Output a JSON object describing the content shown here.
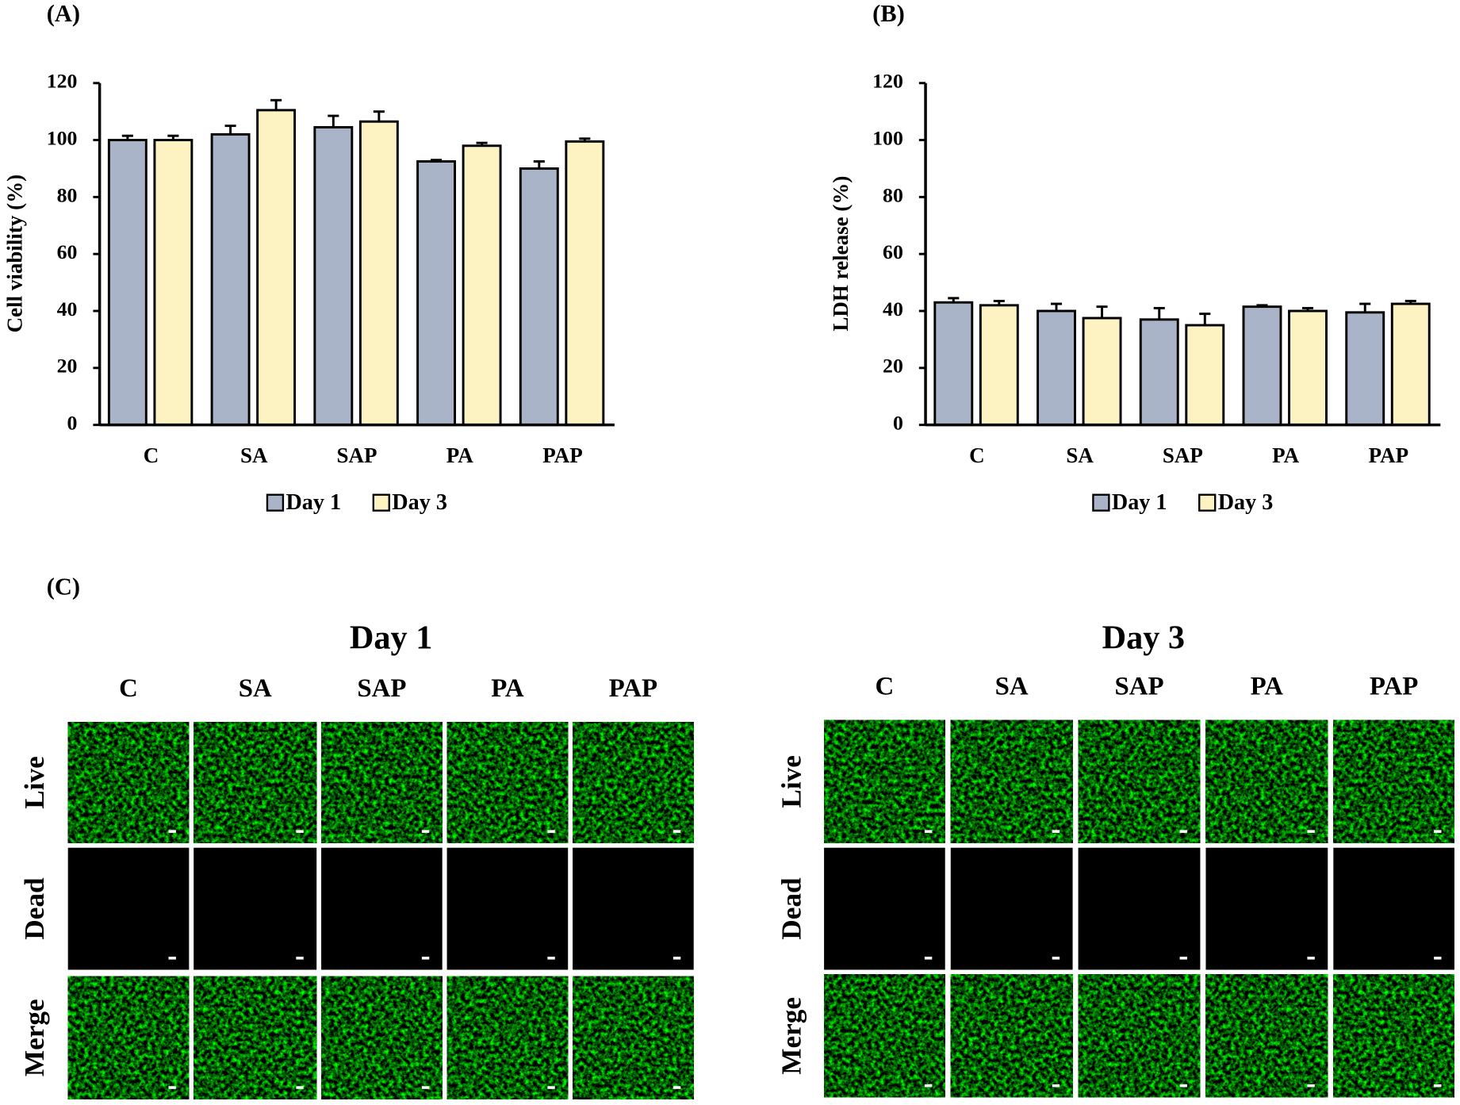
{
  "chart_data": [
    {
      "type": "bar",
      "panel_label": "(A)",
      "ylabel": "Cell viability (%)",
      "categories": [
        "C",
        "SA",
        "SAP",
        "PA",
        "PAP"
      ],
      "series": [
        {
          "name": "Day 1",
          "color": "#aab4c8",
          "values": [
            100,
            102,
            104.5,
            92.5,
            90
          ],
          "errors": [
            1.5,
            3,
            4,
            0.5,
            2.5
          ]
        },
        {
          "name": "Day 3",
          "color": "#fdf2c2",
          "values": [
            100,
            110.5,
            106.5,
            98,
            99.5
          ],
          "errors": [
            1.5,
            3.5,
            3.5,
            1,
            1
          ]
        }
      ],
      "ylim": [
        0,
        120
      ],
      "yticks": [
        0,
        20,
        40,
        60,
        80,
        100,
        120
      ],
      "legend": "bottom"
    },
    {
      "type": "bar",
      "panel_label": "(B)",
      "ylabel": "LDH release (%)",
      "categories": [
        "C",
        "SA",
        "SAP",
        "PA",
        "PAP"
      ],
      "series": [
        {
          "name": "Day 1",
          "color": "#aab4c8",
          "values": [
            43,
            40,
            37,
            41.5,
            39.5
          ],
          "errors": [
            1.5,
            2.5,
            4,
            0.5,
            3
          ]
        },
        {
          "name": "Day 3",
          "color": "#fdf2c2",
          "values": [
            42,
            37.5,
            35,
            40,
            42.5
          ],
          "errors": [
            1.5,
            4,
            4,
            1,
            1
          ]
        }
      ],
      "ylim": [
        0,
        120
      ],
      "yticks": [
        0,
        20,
        40,
        60,
        80,
        100,
        120
      ],
      "legend": "bottom"
    }
  ],
  "microscopy": {
    "panel_label": "(C)",
    "groups": [
      {
        "title": "Day 1",
        "columns": [
          "C",
          "SA",
          "SAP",
          "PA",
          "PAP"
        ],
        "rows": [
          "Live",
          "Dead",
          "Merge"
        ]
      },
      {
        "title": "Day 3",
        "columns": [
          "C",
          "SA",
          "SAP",
          "PA",
          "PAP"
        ],
        "rows": [
          "Live",
          "Dead",
          "Merge"
        ]
      }
    ]
  }
}
